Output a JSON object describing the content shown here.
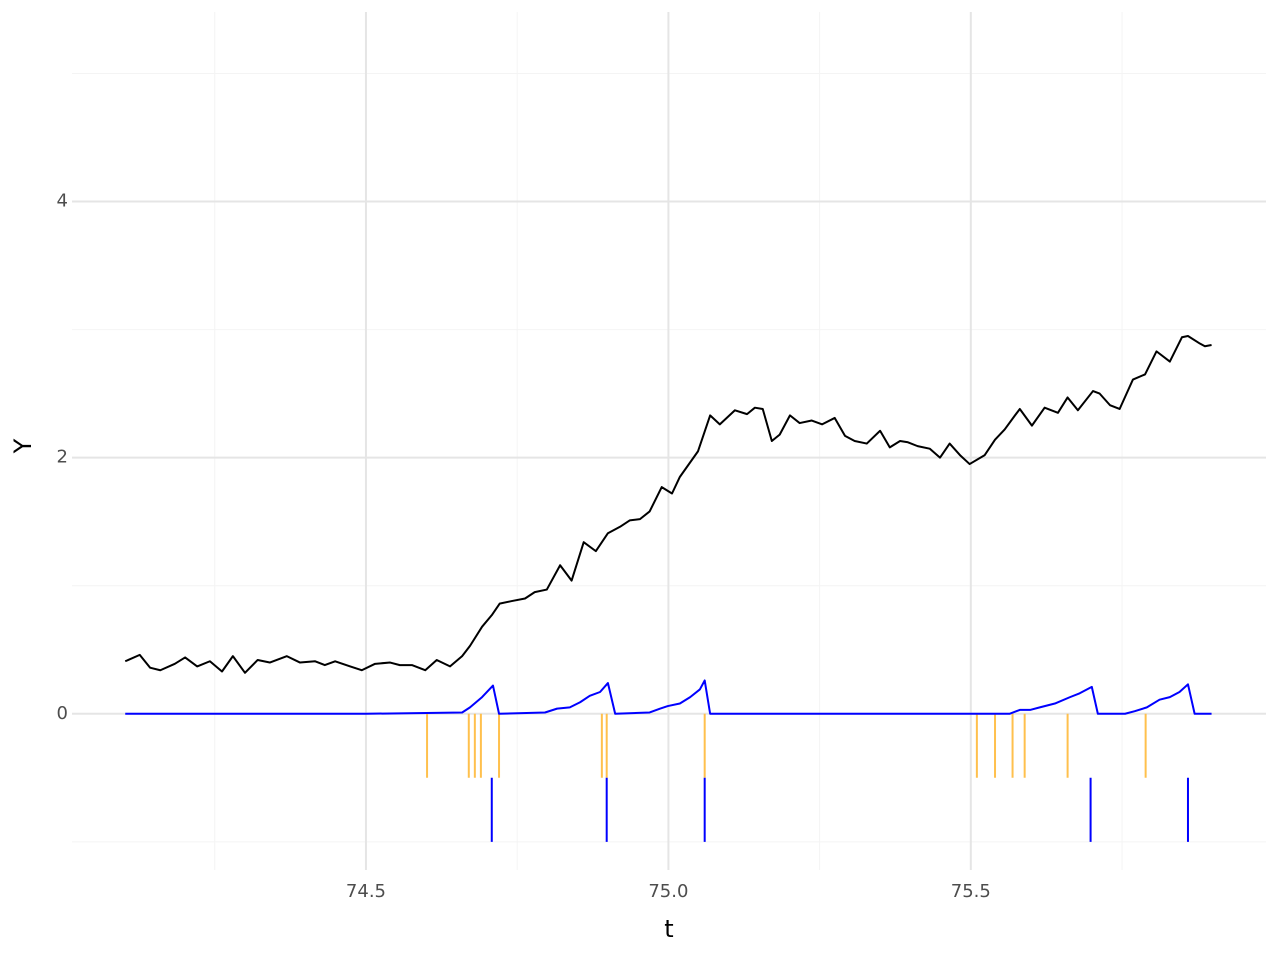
{
  "chart_data": {
    "type": "line",
    "x_label": "t",
    "y_label": "Y",
    "xlim": [
      74.014,
      75.988
    ],
    "ylim": [
      -1.22,
      5.48
    ],
    "xticks": [
      74.5,
      {
        "value": 75,
        "label": "75.0"
      },
      75.5
    ],
    "yticks": [
      0,
      2,
      4
    ],
    "x_minor_grid": [
      74.25,
      74.75,
      75.25,
      75.75
    ],
    "y_minor_grid": [
      -1,
      1,
      3,
      5
    ],
    "grid": true,
    "series": [
      {
        "color": "#000000",
        "x": [
          74.102,
          74.126,
          74.143,
          74.16,
          74.184,
          74.201,
          74.221,
          74.242,
          74.262,
          74.28,
          74.3,
          74.321,
          74.341,
          74.369,
          74.391,
          74.416,
          74.432,
          74.449,
          74.474,
          74.493,
          74.515,
          74.54,
          74.556,
          74.576,
          74.598,
          74.617,
          74.639,
          74.659,
          74.672,
          74.692,
          74.708,
          74.721,
          74.741,
          74.763,
          74.779,
          74.799,
          74.821,
          74.84,
          74.86,
          74.88,
          74.9,
          74.92,
          74.936,
          74.953,
          74.969,
          74.989,
          75.006,
          75.019,
          75.049,
          75.069,
          75.085,
          75.11,
          75.13,
          75.143,
          75.156,
          75.171,
          75.184,
          75.201,
          75.217,
          75.237,
          75.254,
          75.275,
          75.292,
          75.308,
          75.328,
          75.35,
          75.366,
          75.383,
          75.396,
          75.412,
          75.432,
          75.449,
          75.465,
          75.482,
          75.498,
          75.523,
          75.54,
          75.556,
          75.573,
          75.581,
          75.601,
          75.622,
          75.644,
          75.66,
          75.677,
          75.702,
          75.713,
          75.73,
          75.746,
          75.768,
          75.788,
          75.807,
          75.829,
          75.849,
          75.859,
          75.879,
          75.887,
          75.898
        ],
        "values": [
          0.41,
          0.46,
          0.36,
          0.34,
          0.39,
          0.44,
          0.37,
          0.41,
          0.33,
          0.45,
          0.32,
          0.42,
          0.4,
          0.45,
          0.4,
          0.41,
          0.38,
          0.41,
          0.37,
          0.34,
          0.39,
          0.4,
          0.38,
          0.38,
          0.34,
          0.42,
          0.37,
          0.45,
          0.53,
          0.68,
          0.77,
          0.86,
          0.88,
          0.9,
          0.95,
          0.97,
          1.16,
          1.04,
          1.34,
          1.27,
          1.41,
          1.46,
          1.51,
          1.52,
          1.58,
          1.77,
          1.72,
          1.85,
          2.05,
          2.33,
          2.26,
          2.37,
          2.34,
          2.39,
          2.38,
          2.13,
          2.18,
          2.33,
          2.27,
          2.29,
          2.26,
          2.31,
          2.17,
          2.13,
          2.11,
          2.21,
          2.08,
          2.13,
          2.12,
          2.09,
          2.07,
          2.0,
          2.11,
          2.02,
          1.95,
          2.02,
          2.14,
          2.22,
          2.33,
          2.38,
          2.25,
          2.39,
          2.35,
          2.47,
          2.37,
          2.52,
          2.5,
          2.41,
          2.38,
          2.61,
          2.65,
          2.83,
          2.75,
          2.94,
          2.95,
          2.89,
          2.87,
          2.88
        ]
      },
      {
        "color": "#0000ff",
        "x": [
          74.102,
          74.5,
          74.659,
          74.672,
          74.692,
          74.71,
          74.72,
          74.796,
          74.816,
          74.837,
          74.854,
          74.87,
          74.887,
          74.9,
          74.912,
          74.969,
          74.986,
          74.999,
          75.019,
          75.036,
          75.052,
          75.06,
          75.069,
          75.564,
          75.581,
          75.598,
          75.614,
          75.639,
          75.664,
          75.68,
          75.7,
          75.71,
          75.755,
          75.771,
          75.791,
          75.812,
          75.829,
          75.845,
          75.859,
          75.87,
          75.898
        ],
        "values": [
          0,
          0,
          0.01,
          0.05,
          0.13,
          0.22,
          0,
          0.01,
          0.04,
          0.05,
          0.09,
          0.14,
          0.17,
          0.24,
          0,
          0.01,
          0.04,
          0.06,
          0.08,
          0.13,
          0.19,
          0.26,
          0,
          0,
          0.03,
          0.03,
          0.05,
          0.08,
          0.13,
          0.16,
          0.21,
          0,
          0,
          0.02,
          0.05,
          0.11,
          0.13,
          0.17,
          0.23,
          0,
          0
        ]
      }
    ],
    "rugs": [
      {
        "color": "#ffc04d",
        "ymin": -0.5,
        "ymax": 0,
        "x": [
          74.601,
          74.67,
          74.68,
          74.69,
          74.72,
          74.89,
          74.898,
          75.06,
          75.51,
          75.54,
          75.569,
          75.589,
          75.66,
          75.789
        ]
      },
      {
        "color": "#0000ff",
        "ymin": -1,
        "ymax": -0.5,
        "x": [
          74.708,
          74.898,
          75.06,
          75.698,
          75.859
        ]
      }
    ]
  }
}
